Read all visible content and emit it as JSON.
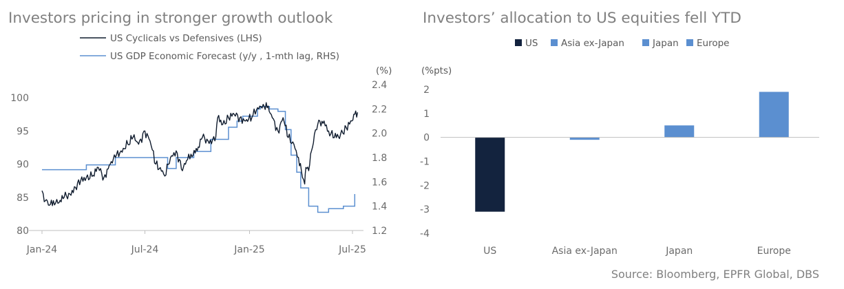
{
  "chart_data": [
    {
      "type": "line",
      "title": "Investors pricing in stronger growth outlook",
      "y_left_unit": "",
      "y_right_unit": "(%)",
      "ylim_left": [
        80,
        100
      ],
      "ylim_right": [
        1.2,
        2.4
      ],
      "left_ticks": [
        "100",
        "95",
        "90",
        "85",
        "80"
      ],
      "right_ticks": [
        "2.4",
        "2.2",
        "2.0",
        "1.8",
        "1.6",
        "1.4",
        "1.2"
      ],
      "x_ticks": [
        "Jan-24",
        "Jul-24",
        "Jan-25",
        "Jul-25"
      ],
      "legend_position": "top",
      "series": [
        {
          "name": "US Cyclicals vs Defensives (LHS)",
          "axis": "left",
          "color": "#0f1b2d",
          "x": [
            "2024-01-02",
            "2024-01-08",
            "2024-01-15",
            "2024-01-22",
            "2024-02-01",
            "2024-02-10",
            "2024-02-20",
            "2024-03-01",
            "2024-03-10",
            "2024-03-20",
            "2024-04-01",
            "2024-04-10",
            "2024-04-20",
            "2024-05-01",
            "2024-05-10",
            "2024-05-20",
            "2024-06-01",
            "2024-06-10",
            "2024-06-20",
            "2024-07-01",
            "2024-07-10",
            "2024-07-20",
            "2024-08-01",
            "2024-08-05",
            "2024-08-15",
            "2024-08-25",
            "2024-09-05",
            "2024-09-12",
            "2024-09-20",
            "2024-10-01",
            "2024-10-10",
            "2024-10-20",
            "2024-11-01",
            "2024-11-06",
            "2024-11-15",
            "2024-11-25",
            "2024-12-05",
            "2024-12-15",
            "2024-12-25",
            "2025-01-05",
            "2025-01-15",
            "2025-01-25",
            "2025-02-01",
            "2025-02-10",
            "2025-02-20",
            "2025-03-01",
            "2025-03-10",
            "2025-03-20",
            "2025-03-28",
            "2025-04-04",
            "2025-04-08",
            "2025-04-10",
            "2025-04-15",
            "2025-04-20",
            "2025-04-25",
            "2025-05-01",
            "2025-05-12",
            "2025-05-20",
            "2025-05-30",
            "2025-06-10",
            "2025-06-20",
            "2025-06-30",
            "2025-07-05",
            "2025-07-10"
          ],
          "values": [
            86.0,
            84.5,
            83.8,
            84.5,
            84.2,
            85.0,
            85.5,
            86.5,
            87.5,
            88.0,
            88.3,
            89.5,
            88.0,
            90.0,
            91.0,
            92.0,
            93.0,
            94.0,
            93.0,
            95.0,
            93.5,
            90.0,
            89.0,
            88.2,
            91.0,
            92.0,
            89.0,
            90.5,
            91.5,
            92.0,
            94.0,
            93.5,
            93.5,
            97.0,
            96.0,
            97.0,
            97.5,
            97.0,
            96.5,
            97.0,
            98.5,
            99.0,
            98.5,
            97.0,
            95.0,
            97.0,
            94.0,
            93.0,
            91.0,
            88.0,
            87.0,
            89.5,
            89.0,
            92.0,
            94.5,
            96.0,
            96.5,
            95.0,
            94.0,
            94.5,
            95.5,
            96.5,
            97.5,
            97.8
          ]
        },
        {
          "name": "US GDP Economic Forecast  (y/y , 1-mth lag, RHS)",
          "axis": "right",
          "color": "#5b8fd0",
          "x": [
            "2024-01-02",
            "2024-03-10",
            "2024-03-20",
            "2024-05-10",
            "2024-06-20",
            "2024-07-15",
            "2024-08-10",
            "2024-08-25",
            "2024-09-25",
            "2024-10-25",
            "2024-11-25",
            "2024-12-10",
            "2024-12-20",
            "2025-01-15",
            "2025-01-20",
            "2025-02-05",
            "2025-02-10",
            "2025-02-20",
            "2025-03-05",
            "2025-03-15",
            "2025-03-25",
            "2025-04-01",
            "2025-04-15",
            "2025-05-01",
            "2025-05-20",
            "2025-06-15",
            "2025-07-05"
          ],
          "values": [
            1.7,
            1.7,
            1.74,
            1.8,
            1.8,
            1.8,
            1.71,
            1.8,
            1.85,
            1.95,
            2.05,
            2.1,
            2.14,
            2.2,
            2.22,
            2.2,
            2.2,
            2.18,
            2.03,
            1.82,
            1.68,
            1.55,
            1.4,
            1.35,
            1.38,
            1.4,
            1.5
          ]
        }
      ]
    },
    {
      "type": "bar",
      "title": "Investors’ allocation to US equities fell YTD",
      "ylabel": "(%pts)",
      "ylim": [
        -4,
        2
      ],
      "y_ticks": [
        "2",
        "1",
        "0",
        "-1",
        "-2",
        "-3",
        "-4"
      ],
      "categories": [
        "US",
        "Asia ex-Japan",
        "Japan",
        "Europe"
      ],
      "values": [
        -3.1,
        -0.1,
        0.5,
        1.9
      ],
      "legend_position": "top",
      "series": [
        {
          "name": "US",
          "color": "#13233e"
        },
        {
          "name": "Asia ex-Japan",
          "color": "#5b8fd0"
        },
        {
          "name": "Japan",
          "color": "#5b8fd0"
        },
        {
          "name": "Europe",
          "color": "#5b8fd0"
        }
      ]
    }
  ],
  "source": "Source:  Bloomberg, EPFR Global, DBS"
}
